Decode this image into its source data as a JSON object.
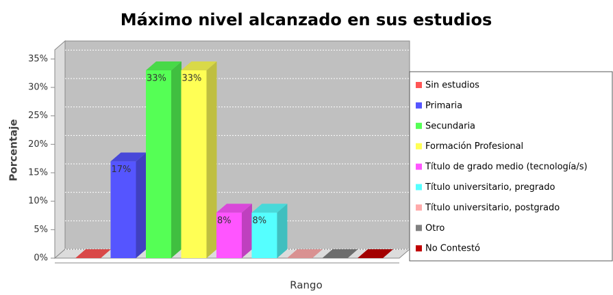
{
  "chart_data": {
    "type": "bar3d",
    "title": "Máximo nivel alcanzado en sus estudios",
    "x_label": "Rango",
    "y_label": "Porcentaje",
    "ylim": [
      0,
      36.6
    ],
    "yticks": [
      {
        "value": 0,
        "label": "0%"
      },
      {
        "value": 5,
        "label": "5%"
      },
      {
        "value": 10,
        "label": "10%"
      },
      {
        "value": 15,
        "label": "15%"
      },
      {
        "value": 20,
        "label": "20%"
      },
      {
        "value": 25,
        "label": "25%"
      },
      {
        "value": 30,
        "label": "30%"
      },
      {
        "value": 35,
        "label": "35%"
      }
    ],
    "grid": true,
    "legend": "right",
    "series": [
      {
        "name": "Sin estudios",
        "color": "#ff5555",
        "values": [
          0
        ]
      },
      {
        "name": "Primaria",
        "color": "#5555ff",
        "values": [
          17
        ],
        "value_labels": [
          "17%"
        ]
      },
      {
        "name": "Secundaria",
        "color": "#55ff55",
        "values": [
          33
        ],
        "value_labels": [
          "33%"
        ]
      },
      {
        "name": "Formación Profesional",
        "color": "#ffff55",
        "values": [
          33
        ],
        "value_labels": [
          "33%"
        ]
      },
      {
        "name": "Título de grado medio (tecnología/s)",
        "color": "#ff55ff",
        "values": [
          8
        ],
        "value_labels": [
          "8%"
        ]
      },
      {
        "name": "Título universitario, pregrado",
        "color": "#55ffff",
        "values": [
          8
        ],
        "value_labels": [
          "8%"
        ]
      },
      {
        "name": "Título universitario, postgrado",
        "color": "#ffaaaa",
        "values": [
          0
        ]
      },
      {
        "name": "Otro",
        "color": "#808080",
        "values": [
          0
        ]
      },
      {
        "name": "No Contestó",
        "color": "#c00000",
        "values": [
          0
        ]
      }
    ]
  }
}
